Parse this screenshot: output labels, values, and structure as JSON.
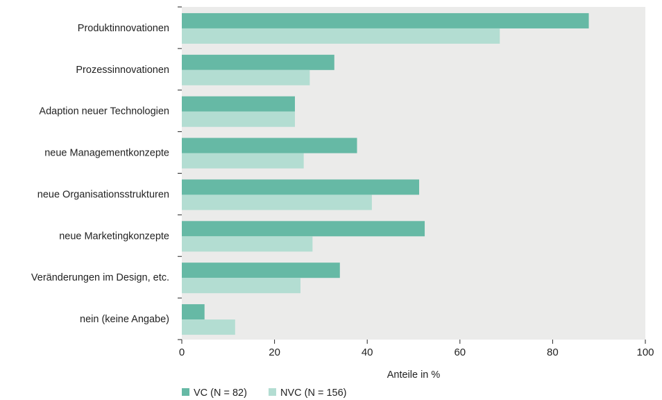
{
  "chart_data": {
    "type": "bar",
    "orientation": "horizontal",
    "categories": [
      "Produktinnovationen",
      "Prozessinnovationen",
      "Adaption neuer Technologien",
      "neue Managementkonzepte",
      "neue Organisationsstrukturen",
      "neue Marketingkonzepte",
      "Veränderungen im Design, etc.",
      "nein (keine Angabe)"
    ],
    "series": [
      {
        "name": "VC (N = 82)",
        "values": [
          87.8,
          32.9,
          24.4,
          37.8,
          51.2,
          52.4,
          34.1,
          4.9
        ]
      },
      {
        "name": "NVC (N = 156)",
        "values": [
          68.6,
          27.6,
          24.4,
          26.3,
          41.0,
          28.2,
          25.6,
          11.5
        ]
      }
    ],
    "xlabel": "Anteile in %",
    "ylabel": "",
    "xlim": [
      0,
      100
    ],
    "xticks": [
      0,
      20,
      40,
      60,
      80,
      100
    ],
    "grid": false,
    "legend_position": "bottom-left",
    "colors": {
      "VC (N = 82)": "#66b9a5",
      "NVC (N = 156)": "#b3ddd2",
      "plot_background": "#ebebea"
    }
  }
}
